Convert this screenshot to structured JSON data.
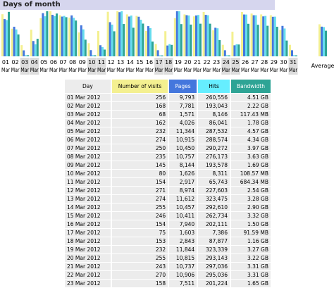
{
  "header": {
    "title": "Days of month"
  },
  "chart": {
    "days": [
      "01",
      "02",
      "03",
      "04",
      "05",
      "06",
      "07",
      "08",
      "09",
      "10",
      "11",
      "12",
      "13",
      "14",
      "15",
      "16",
      "17",
      "18",
      "19",
      "20",
      "21",
      "22",
      "23",
      "24",
      "25",
      "26",
      "27",
      "28",
      "29",
      "30",
      "31"
    ],
    "month": "Mar",
    "weekend": [
      "03",
      "04",
      "10",
      "11",
      "17",
      "18",
      "24",
      "25",
      "31"
    ],
    "average_label": "Average",
    "series": [
      {
        "color": "#f4f090",
        "values": [
          256,
          168,
          68,
          162,
          232,
          274,
          250,
          235,
          145,
          80,
          154,
          271,
          274,
          255,
          246,
          154,
          75,
          153,
          232,
          255,
          243,
          270,
          158,
          70,
          150,
          270,
          260,
          255,
          250,
          160,
          70
        ],
        "average": 195
      },
      {
        "color": "#4477dd",
        "values": [
          9793,
          7781,
          1571,
          4026,
          11344,
          10915,
          10450,
          10757,
          8144,
          1626,
          2917,
          8974,
          11612,
          10457,
          10411,
          7940,
          1603,
          2843,
          11844,
          10815,
          10737,
          10906,
          7511,
          1600,
          2900,
          11000,
          10800,
          10500,
          10400,
          8000,
          1600
        ],
        "average": 7800
      },
      {
        "color": "#66ddee",
        "values": [
          260556,
          193043,
          8146,
          86041,
          287532,
          288574,
          290272,
          276173,
          193578,
          8311,
          65743,
          227603,
          323475,
          292610,
          262734,
          202111,
          7386,
          87877,
          323339,
          293143,
          297036,
          295036,
          201224,
          8000,
          87000,
          300000,
          295000,
          290000,
          285000,
          200000,
          8000
        ],
        "average": 210000
      },
      {
        "color": "#2ea495",
        "values": [
          4.51,
          2.22,
          0.117,
          1.78,
          4.57,
          4.34,
          3.97,
          3.63,
          1.69,
          0.109,
          0.684,
          2.54,
          3.28,
          2.9,
          3.32,
          1.5,
          0.092,
          1.16,
          3.27,
          3.22,
          3.31,
          3.31,
          1.65,
          0.1,
          1.2,
          3.3,
          3.2,
          3.1,
          3.0,
          1.6,
          0.1
        ],
        "average": 2.6
      }
    ]
  },
  "table": {
    "headers": [
      "Day",
      "Number of visits",
      "Pages",
      "Hits",
      "Bandwidth"
    ],
    "rows": [
      [
        "01 Mar 2012",
        "256",
        "9,793",
        "260,556",
        "4.51 GB"
      ],
      [
        "02 Mar 2012",
        "168",
        "7,781",
        "193,043",
        "2.22 GB"
      ],
      [
        "03 Mar 2012",
        "68",
        "1,571",
        "8,146",
        "117.43 MB"
      ],
      [
        "04 Mar 2012",
        "162",
        "4,026",
        "86,041",
        "1.78 GB"
      ],
      [
        "05 Mar 2012",
        "232",
        "11,344",
        "287,532",
        "4.57 GB"
      ],
      [
        "06 Mar 2012",
        "274",
        "10,915",
        "288,574",
        "4.34 GB"
      ],
      [
        "07 Mar 2012",
        "250",
        "10,450",
        "290,272",
        "3.97 GB"
      ],
      [
        "08 Mar 2012",
        "235",
        "10,757",
        "276,173",
        "3.63 GB"
      ],
      [
        "09 Mar 2012",
        "145",
        "8,144",
        "193,578",
        "1.69 GB"
      ],
      [
        "10 Mar 2012",
        "80",
        "1,626",
        "8,311",
        "108.57 MB"
      ],
      [
        "11 Mar 2012",
        "154",
        "2,917",
        "65,743",
        "684.34 MB"
      ],
      [
        "12 Mar 2012",
        "271",
        "8,974",
        "227,603",
        "2.54 GB"
      ],
      [
        "13 Mar 2012",
        "274",
        "11,612",
        "323,475",
        "3.28 GB"
      ],
      [
        "14 Mar 2012",
        "255",
        "10,457",
        "292,610",
        "2.90 GB"
      ],
      [
        "15 Mar 2012",
        "246",
        "10,411",
        "262,734",
        "3.32 GB"
      ],
      [
        "16 Mar 2012",
        "154",
        "7,940",
        "202,111",
        "1.50 GB"
      ],
      [
        "17 Mar 2012",
        "75",
        "1,603",
        "7,386",
        "91.59 MB"
      ],
      [
        "18 Mar 2012",
        "153",
        "2,843",
        "87,877",
        "1.16 GB"
      ],
      [
        "19 Mar 2012",
        "232",
        "11,844",
        "323,339",
        "3.27 GB"
      ],
      [
        "20 Mar 2012",
        "255",
        "10,815",
        "293,143",
        "3.22 GB"
      ],
      [
        "21 Mar 2012",
        "243",
        "10,737",
        "297,036",
        "3.31 GB"
      ],
      [
        "22 Mar 2012",
        "270",
        "10,906",
        "295,036",
        "3.31 GB"
      ],
      [
        "23 Mar 2012",
        "158",
        "7,511",
        "201,224",
        "1.65 GB"
      ]
    ]
  }
}
